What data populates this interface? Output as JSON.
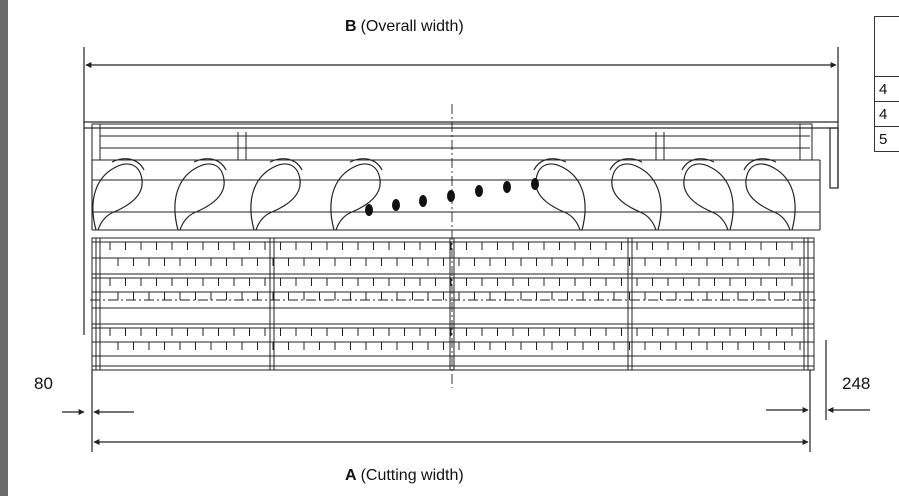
{
  "labels": {
    "overall_width_letter": "B",
    "overall_width_text": "(Overall width)",
    "cutting_width_letter": "A",
    "cutting_width_text": "(Cutting width)",
    "left_offset": "80",
    "right_offset": "248"
  },
  "spec_table": {
    "header": "",
    "rows": [
      "4",
      "4",
      "5"
    ]
  },
  "colors": {
    "line": "#222222",
    "edge_strip": "#6b6b6b"
  }
}
